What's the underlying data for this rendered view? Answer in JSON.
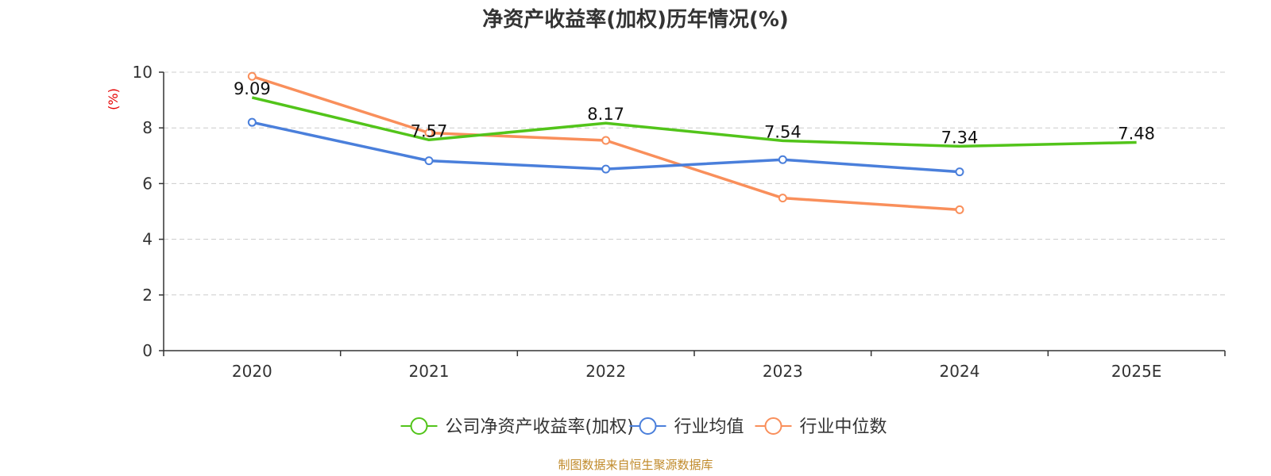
{
  "chart_data": {
    "type": "line",
    "title": "净资产收益率(加权)历年情况(%)",
    "ylabel": "(%)",
    "xlabel": "",
    "ylim": [
      0,
      10
    ],
    "yticks": [
      "0",
      "2",
      "4",
      "6",
      "8",
      "10"
    ],
    "categories": [
      "2020",
      "2021",
      "2022",
      "2023",
      "2024",
      "2025E"
    ],
    "series": [
      {
        "name": "公司净资产收益率(加权)",
        "color": "#52c41a",
        "values": [
          9.09,
          7.57,
          8.17,
          7.54,
          7.34,
          7.48
        ],
        "labels": [
          "9.09",
          "7.57",
          "8.17",
          "7.54",
          "7.34",
          "7.48"
        ],
        "show_markers": false
      },
      {
        "name": "行业均值",
        "color": "#4a7fdb",
        "values": [
          8.2,
          6.82,
          6.52,
          6.86,
          6.42,
          null
        ],
        "show_markers": true
      },
      {
        "name": "行业中位数",
        "color": "#f98f5b",
        "values": [
          9.85,
          7.82,
          7.55,
          5.48,
          5.06,
          null
        ],
        "show_markers": true
      }
    ],
    "legend_position": "bottom-center",
    "grid": true,
    "source": "制图数据来自恒生聚源数据库"
  }
}
